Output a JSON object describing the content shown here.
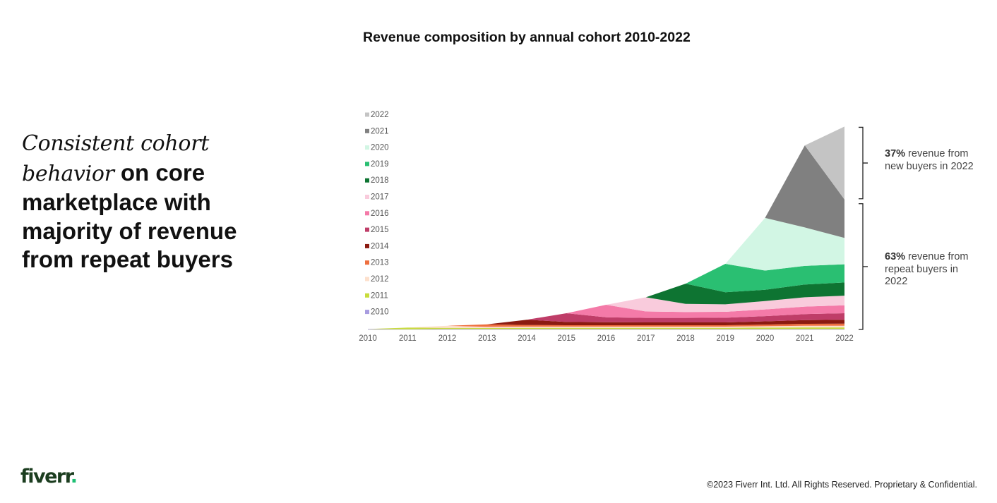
{
  "headline": {
    "italic_text": "Consistent cohort behavior",
    "bold_text": " on core marketplace with majority of revenue from repeat buyers"
  },
  "chart_data": {
    "type": "area",
    "stacked": true,
    "title": "Revenue composition by annual cohort 2010-2022",
    "x": [
      "2010",
      "2011",
      "2012",
      "2013",
      "2014",
      "2015",
      "2016",
      "2017",
      "2018",
      "2019",
      "2020",
      "2021",
      "2022"
    ],
    "series": [
      {
        "name": "2010",
        "color": "#a89ce0",
        "values": [
          0.2,
          0.1,
          0.2,
          0.2,
          0.2,
          0.2,
          0.2,
          0.2,
          0.2,
          0.2,
          0.2,
          0.2,
          0.2
        ]
      },
      {
        "name": "2011",
        "color": "#c8dc3c",
        "values": [
          0,
          0.8,
          0.6,
          0.5,
          0.6,
          0.6,
          0.6,
          0.6,
          0.6,
          0.6,
          0.7,
          0.8,
          0.8
        ]
      },
      {
        "name": "2012",
        "color": "#fde0cc",
        "values": [
          0,
          0,
          1.0,
          0.6,
          0.6,
          0.6,
          0.6,
          0.6,
          0.6,
          0.6,
          0.7,
          0.8,
          0.8
        ]
      },
      {
        "name": "2013",
        "color": "#ee6f3f",
        "values": [
          0,
          0,
          0,
          1.2,
          0.8,
          0.7,
          0.7,
          0.7,
          0.7,
          0.7,
          0.8,
          1.0,
          1.1
        ]
      },
      {
        "name": "2014",
        "color": "#8b1a10",
        "values": [
          0,
          0,
          0,
          0,
          2.6,
          1.6,
          1.5,
          1.4,
          1.4,
          1.4,
          1.6,
          1.8,
          1.9
        ]
      },
      {
        "name": "2015",
        "color": "#bf3d68",
        "values": [
          0,
          0,
          0,
          0,
          0,
          4.3,
          2.4,
          2.2,
          2.2,
          2.3,
          2.6,
          3.0,
          3.2
        ]
      },
      {
        "name": "2016",
        "color": "#f47aa8",
        "values": [
          0,
          0,
          0,
          0,
          0,
          0,
          6.2,
          3.2,
          2.9,
          2.9,
          3.3,
          3.7,
          3.9
        ]
      },
      {
        "name": "2017",
        "color": "#f9cbdc",
        "values": [
          0,
          0,
          0,
          0,
          0,
          0,
          0,
          7.0,
          4.0,
          3.7,
          4.1,
          4.6,
          4.8
        ]
      },
      {
        "name": "2018",
        "color": "#0e7432",
        "values": [
          0,
          0,
          0,
          0,
          0,
          0,
          0,
          0,
          10.0,
          6.0,
          5.6,
          6.3,
          6.5
        ]
      },
      {
        "name": "2019",
        "color": "#2abf72",
        "values": [
          0,
          0,
          0,
          0,
          0,
          0,
          0,
          0,
          0,
          14.0,
          9.5,
          9.2,
          9.0
        ]
      },
      {
        "name": "2020",
        "color": "#d2f6e4",
        "values": [
          0,
          0,
          0,
          0,
          0,
          0,
          0,
          0,
          0,
          0,
          26.0,
          19.0,
          13.0
        ]
      },
      {
        "name": "2021",
        "color": "#808080",
        "values": [
          0,
          0,
          0,
          0,
          0,
          0,
          0,
          0,
          0,
          0,
          0,
          40.5,
          19.0
        ]
      },
      {
        "name": "2022",
        "color": "#c4c4c4",
        "values": [
          0,
          0,
          0,
          0,
          0,
          0,
          0,
          0,
          0,
          0,
          0,
          0,
          36.0
        ]
      }
    ],
    "ylim": [
      0,
      100
    ],
    "grid": false,
    "legend_position": "left",
    "annotations": [
      {
        "bold": "37%",
        "text": " revenue from new buyers in 2022"
      },
      {
        "bold": "63%",
        "text": " revenue from repeat buyers in 2022"
      }
    ]
  },
  "footer": {
    "logo_text": "fiverr",
    "logo_dot": ".",
    "copyright": "©2023 Fiverr Int. Ltd. All Rights Reserved. Proprietary & Confidential."
  }
}
